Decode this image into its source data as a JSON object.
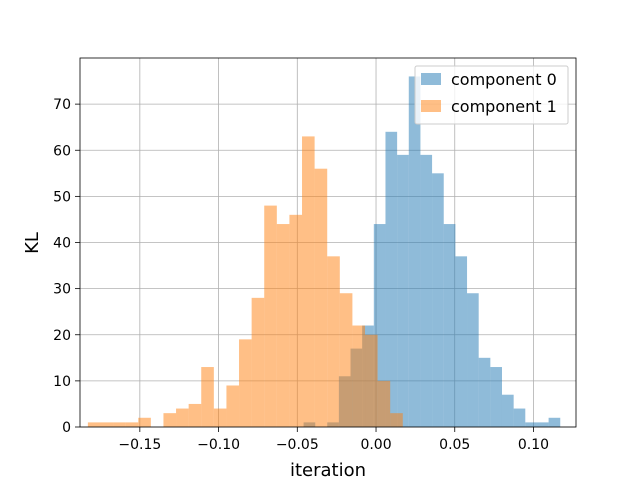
{
  "chart_data": {
    "type": "histogram",
    "xlabel": "iteration",
    "ylabel": "KL",
    "xlim": [
      -0.188,
      0.127
    ],
    "ylim": [
      0,
      80
    ],
    "x_ticks": [
      -0.15,
      -0.1,
      -0.05,
      0.0,
      0.05,
      0.1
    ],
    "x_tick_labels": [
      "−0.15",
      "−0.10",
      "−0.05",
      "0.00",
      "0.05",
      "0.10"
    ],
    "y_ticks": [
      0,
      10,
      20,
      30,
      40,
      50,
      60,
      70
    ],
    "y_tick_labels": [
      "0",
      "10",
      "20",
      "30",
      "40",
      "50",
      "60",
      "70"
    ],
    "grid": true,
    "legend_position": "top-right",
    "series": [
      {
        "name": "component 0",
        "color": "#1f77b4",
        "alpha": 0.5,
        "bins": [
          {
            "x0": -0.046,
            "x1": -0.0386,
            "count": 1
          },
          {
            "x0": -0.031,
            "x1": -0.0236,
            "count": 1
          },
          {
            "x0": -0.0236,
            "x1": -0.0162,
            "count": 11
          },
          {
            "x0": -0.0162,
            "x1": -0.0088,
            "count": 17
          },
          {
            "x0": -0.0088,
            "x1": -0.0014,
            "count": 22
          },
          {
            "x0": -0.0014,
            "x1": 0.006,
            "count": 44
          },
          {
            "x0": 0.006,
            "x1": 0.0134,
            "count": 64
          },
          {
            "x0": 0.0134,
            "x1": 0.0208,
            "count": 59
          },
          {
            "x0": 0.0208,
            "x1": 0.0282,
            "count": 76
          },
          {
            "x0": 0.0282,
            "x1": 0.0356,
            "count": 59
          },
          {
            "x0": 0.0356,
            "x1": 0.043,
            "count": 55
          },
          {
            "x0": 0.043,
            "x1": 0.0504,
            "count": 44
          },
          {
            "x0": 0.0504,
            "x1": 0.0578,
            "count": 37
          },
          {
            "x0": 0.0578,
            "x1": 0.0652,
            "count": 29
          },
          {
            "x0": 0.0652,
            "x1": 0.0726,
            "count": 15
          },
          {
            "x0": 0.0726,
            "x1": 0.08,
            "count": 13
          },
          {
            "x0": 0.08,
            "x1": 0.0874,
            "count": 7
          },
          {
            "x0": 0.0874,
            "x1": 0.0948,
            "count": 4
          },
          {
            "x0": 0.0948,
            "x1": 0.1022,
            "count": 1
          },
          {
            "x0": 0.1022,
            "x1": 0.1096,
            "count": 1
          },
          {
            "x0": 0.1096,
            "x1": 0.117,
            "count": 2
          }
        ]
      },
      {
        "name": "component 1",
        "color": "#ff7f0e",
        "alpha": 0.5,
        "bins": [
          {
            "x0": -0.183,
            "x1": -0.175,
            "count": 1
          },
          {
            "x0": -0.175,
            "x1": -0.167,
            "count": 1
          },
          {
            "x0": -0.167,
            "x1": -0.159,
            "count": 1
          },
          {
            "x0": -0.159,
            "x1": -0.151,
            "count": 1
          },
          {
            "x0": -0.151,
            "x1": -0.143,
            "count": 2
          },
          {
            "x0": -0.143,
            "x1": -0.135,
            "count": 0
          },
          {
            "x0": -0.135,
            "x1": -0.127,
            "count": 3
          },
          {
            "x0": -0.127,
            "x1": -0.119,
            "count": 4
          },
          {
            "x0": -0.119,
            "x1": -0.111,
            "count": 5
          },
          {
            "x0": -0.111,
            "x1": -0.103,
            "count": 13
          },
          {
            "x0": -0.103,
            "x1": -0.095,
            "count": 4
          },
          {
            "x0": -0.095,
            "x1": -0.087,
            "count": 9
          },
          {
            "x0": -0.087,
            "x1": -0.079,
            "count": 19
          },
          {
            "x0": -0.079,
            "x1": -0.071,
            "count": 28
          },
          {
            "x0": -0.071,
            "x1": -0.063,
            "count": 48
          },
          {
            "x0": -0.063,
            "x1": -0.055,
            "count": 44
          },
          {
            "x0": -0.055,
            "x1": -0.047,
            "count": 46
          },
          {
            "x0": -0.047,
            "x1": -0.039,
            "count": 63
          },
          {
            "x0": -0.039,
            "x1": -0.031,
            "count": 56
          },
          {
            "x0": -0.031,
            "x1": -0.023,
            "count": 37
          },
          {
            "x0": -0.023,
            "x1": -0.015,
            "count": 29
          },
          {
            "x0": -0.015,
            "x1": -0.007,
            "count": 22
          },
          {
            "x0": -0.007,
            "x1": 0.001,
            "count": 20
          },
          {
            "x0": 0.001,
            "x1": 0.009,
            "count": 10
          },
          {
            "x0": 0.009,
            "x1": 0.017,
            "count": 3
          }
        ]
      }
    ]
  }
}
